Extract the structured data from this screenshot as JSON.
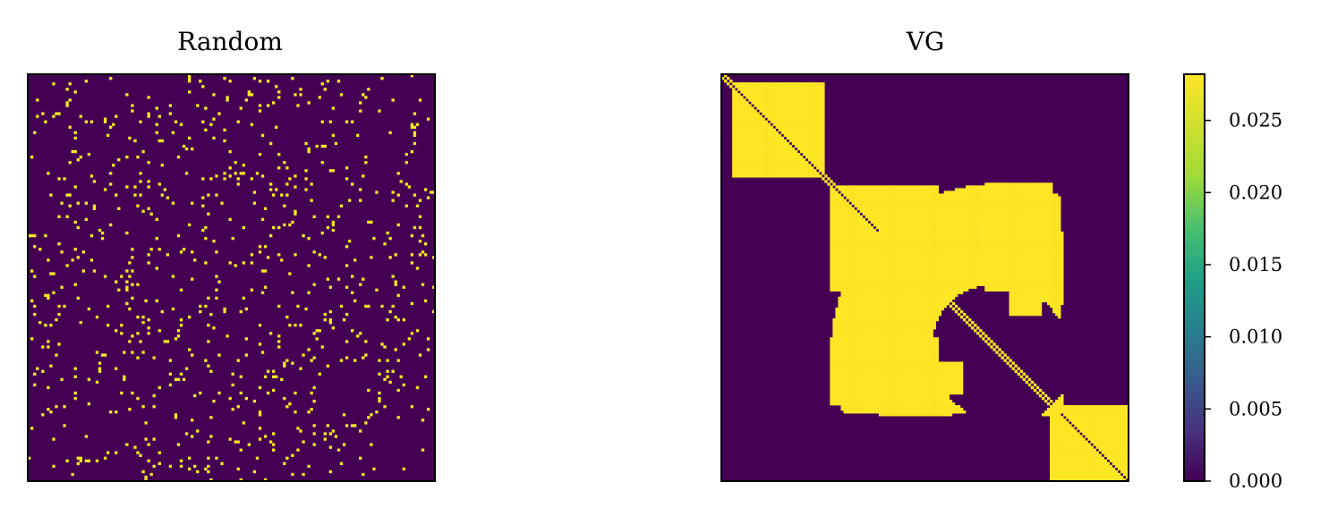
{
  "chart_data": [
    {
      "type": "heatmap",
      "title": "Random",
      "matrix_size": 150,
      "pattern": "random sparse binary adjacency matrix",
      "values": [
        0.0,
        0.0282
      ],
      "density": 0.06,
      "xticks": [],
      "yticks": []
    },
    {
      "type": "heatmap",
      "title": "VG",
      "matrix_size": 150,
      "pattern": "visibility graph adjacency matrix with block structure",
      "values": [
        0.0,
        0.0282
      ],
      "xticks": [],
      "yticks": []
    }
  ],
  "colorbar": {
    "colormap": "viridis",
    "vmin": 0.0,
    "vmax": 0.0282,
    "tick_values": [
      0.0,
      0.005,
      0.01,
      0.015,
      0.02,
      0.025
    ],
    "tick_labels": [
      "0.000",
      "0.005",
      "0.010",
      "0.015",
      "0.020",
      "0.025"
    ]
  },
  "colors": {
    "low": "#440154",
    "high": "#fde725",
    "frame": "#000000"
  }
}
